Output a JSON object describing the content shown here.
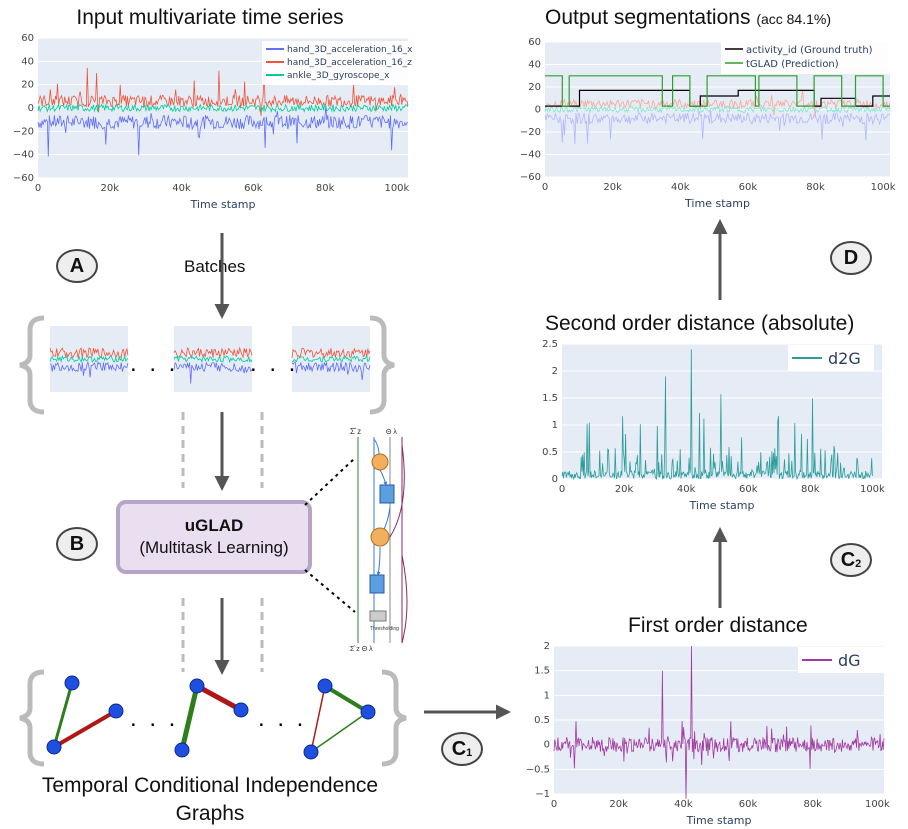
{
  "titles": {
    "input": "Input multivariate time series",
    "output": "Output segmentations",
    "output_acc": "(acc 84.1%)",
    "second_order": "Second order distance (absolute)",
    "first_order": "First order distance",
    "tcig_line1": "Temporal Conditional Independence",
    "tcig_line2": "Graphs"
  },
  "labels": {
    "batches": "Batches",
    "A": "A",
    "B": "B",
    "C": "C",
    "C1_sub": "1",
    "C2_sub": "2",
    "D": "D",
    "uglad_bold": "uGLAD",
    "uglad_sub": "(Multitask Learning)",
    "dots": ". . ."
  },
  "colors": {
    "acc_x": "#636efa",
    "acc_z": "#ef553b",
    "gyro": "#00cc96",
    "d2g": "#2a9d9a",
    "dg": "#a03aa0",
    "gt": "#000000",
    "pred": "#2ca02c",
    "graph_node": "#1f4fe0",
    "edge_green": "#2e7d1e",
    "edge_red": "#b01818"
  },
  "chart_data": [
    {
      "type": "line",
      "id": "input",
      "xlabel": "Time stamp",
      "xticks": [
        "0",
        "20k",
        "40k",
        "60k",
        "80k",
        "100k"
      ],
      "yticks": [
        "60",
        "40",
        "20",
        "0",
        "−20",
        "−40",
        "−60"
      ],
      "ylim": [
        -60,
        60
      ],
      "xlim": [
        0,
        103000
      ],
      "series": [
        {
          "name": "hand_3D_acceleration_16_x"
        },
        {
          "name": "hand_3D_acceleration_16_z"
        },
        {
          "name": "ankle_3D_gyroscope_x"
        }
      ]
    },
    {
      "type": "line",
      "id": "output",
      "xlabel": "Time stamp",
      "xticks": [
        "0",
        "20k",
        "40k",
        "60k",
        "80k",
        "100k"
      ],
      "yticks": [
        "60",
        "40",
        "20",
        "0",
        "−20",
        "−40",
        "−60"
      ],
      "ylim": [
        -60,
        60
      ],
      "series": [
        {
          "name": "activity_id (Ground truth)"
        },
        {
          "name": "tGLAD (Prediction)"
        }
      ]
    },
    {
      "type": "line",
      "id": "d2g",
      "xlabel": "Time stamp",
      "xticks": [
        "0",
        "20k",
        "40k",
        "60k",
        "80k",
        "100k"
      ],
      "yticks": [
        "2.5",
        "2",
        "1.5",
        "1",
        "0.5",
        "0"
      ],
      "ylim": [
        0,
        2.5
      ],
      "series": [
        {
          "name": "d2G"
        }
      ]
    },
    {
      "type": "line",
      "id": "dg",
      "xlabel": "Time stamp",
      "xticks": [
        "0",
        "20k",
        "40k",
        "60k",
        "80k",
        "100k"
      ],
      "yticks": [
        "2",
        "1.5",
        "1",
        "0.5",
        "0",
        "−0.5",
        "−1"
      ],
      "ylim": [
        -1.2,
        2.1
      ],
      "series": [
        {
          "name": "dG"
        }
      ]
    }
  ]
}
